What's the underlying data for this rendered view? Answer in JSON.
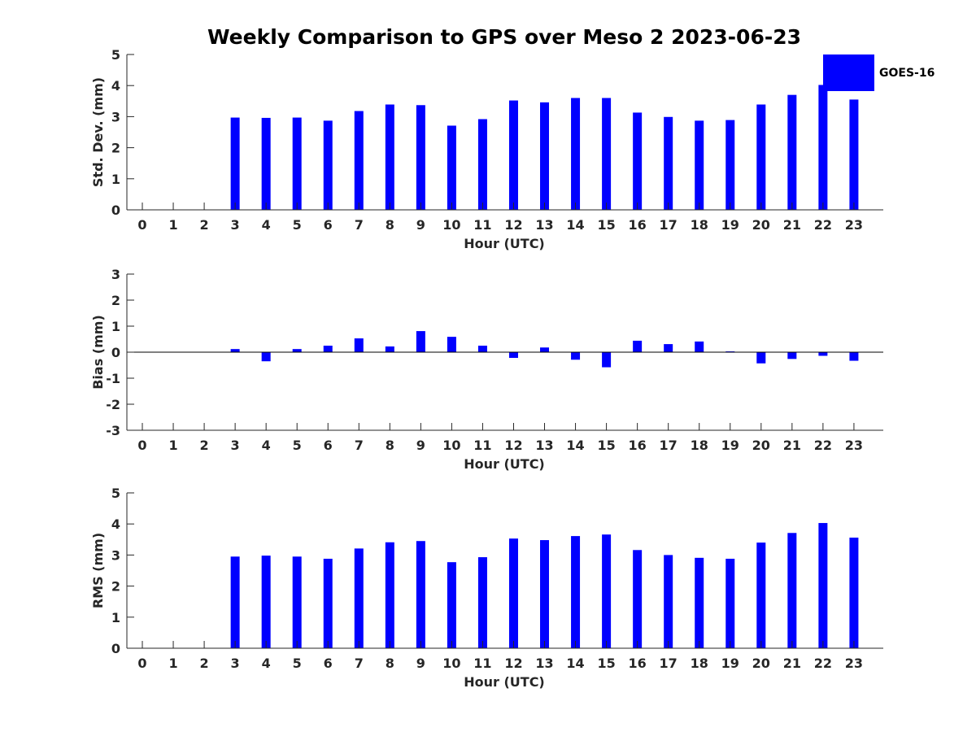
{
  "title": "Weekly Comparison to GPS over Meso 2 2023-06-23",
  "legend": {
    "label": "GOES-16",
    "color": "#0000ff"
  },
  "chart_data": [
    {
      "type": "bar",
      "name": "std-dev",
      "series_name": "GOES-16",
      "xlabel": "Hour (UTC)",
      "ylabel": "Std. Dev. (mm)",
      "ylim": [
        0,
        5
      ],
      "yticks": [
        0,
        1,
        2,
        3,
        4,
        5
      ],
      "categories": [
        0,
        1,
        2,
        3,
        4,
        5,
        6,
        7,
        8,
        9,
        10,
        11,
        12,
        13,
        14,
        15,
        16,
        17,
        18,
        19,
        20,
        21,
        22,
        23
      ],
      "values": [
        0,
        0,
        0,
        2.97,
        2.96,
        2.97,
        2.87,
        3.18,
        3.39,
        3.37,
        2.71,
        2.92,
        3.52,
        3.46,
        3.6,
        3.6,
        3.13,
        2.99,
        2.87,
        2.89,
        3.39,
        3.7,
        4.02,
        3.55
      ]
    },
    {
      "type": "bar",
      "name": "bias",
      "series_name": "GOES-16",
      "xlabel": "Hour (UTC)",
      "ylabel": "Bias (mm)",
      "ylim": [
        -3,
        3
      ],
      "yticks": [
        -3,
        -2,
        -1,
        0,
        1,
        2,
        3
      ],
      "categories": [
        0,
        1,
        2,
        3,
        4,
        5,
        6,
        7,
        8,
        9,
        10,
        11,
        12,
        13,
        14,
        15,
        16,
        17,
        18,
        19,
        20,
        21,
        22,
        23
      ],
      "values": [
        0,
        0,
        0,
        0.12,
        -0.35,
        0.12,
        0.25,
        0.53,
        0.22,
        0.81,
        0.59,
        0.25,
        -0.22,
        0.18,
        -0.29,
        -0.58,
        0.44,
        0.31,
        0.41,
        0.03,
        -0.43,
        -0.26,
        -0.14,
        -0.33
      ]
    },
    {
      "type": "bar",
      "name": "rms",
      "series_name": "GOES-16",
      "xlabel": "Hour (UTC)",
      "ylabel": "RMS (mm)",
      "ylim": [
        0,
        5
      ],
      "yticks": [
        0,
        1,
        2,
        3,
        4,
        5
      ],
      "categories": [
        0,
        1,
        2,
        3,
        4,
        5,
        6,
        7,
        8,
        9,
        10,
        11,
        12,
        13,
        14,
        15,
        16,
        17,
        18,
        19,
        20,
        21,
        22,
        23
      ],
      "values": [
        0,
        0,
        0,
        2.95,
        2.98,
        2.95,
        2.88,
        3.21,
        3.41,
        3.45,
        2.77,
        2.93,
        3.53,
        3.48,
        3.61,
        3.66,
        3.16,
        3.0,
        2.91,
        2.88,
        3.4,
        3.71,
        4.03,
        3.56
      ]
    }
  ]
}
